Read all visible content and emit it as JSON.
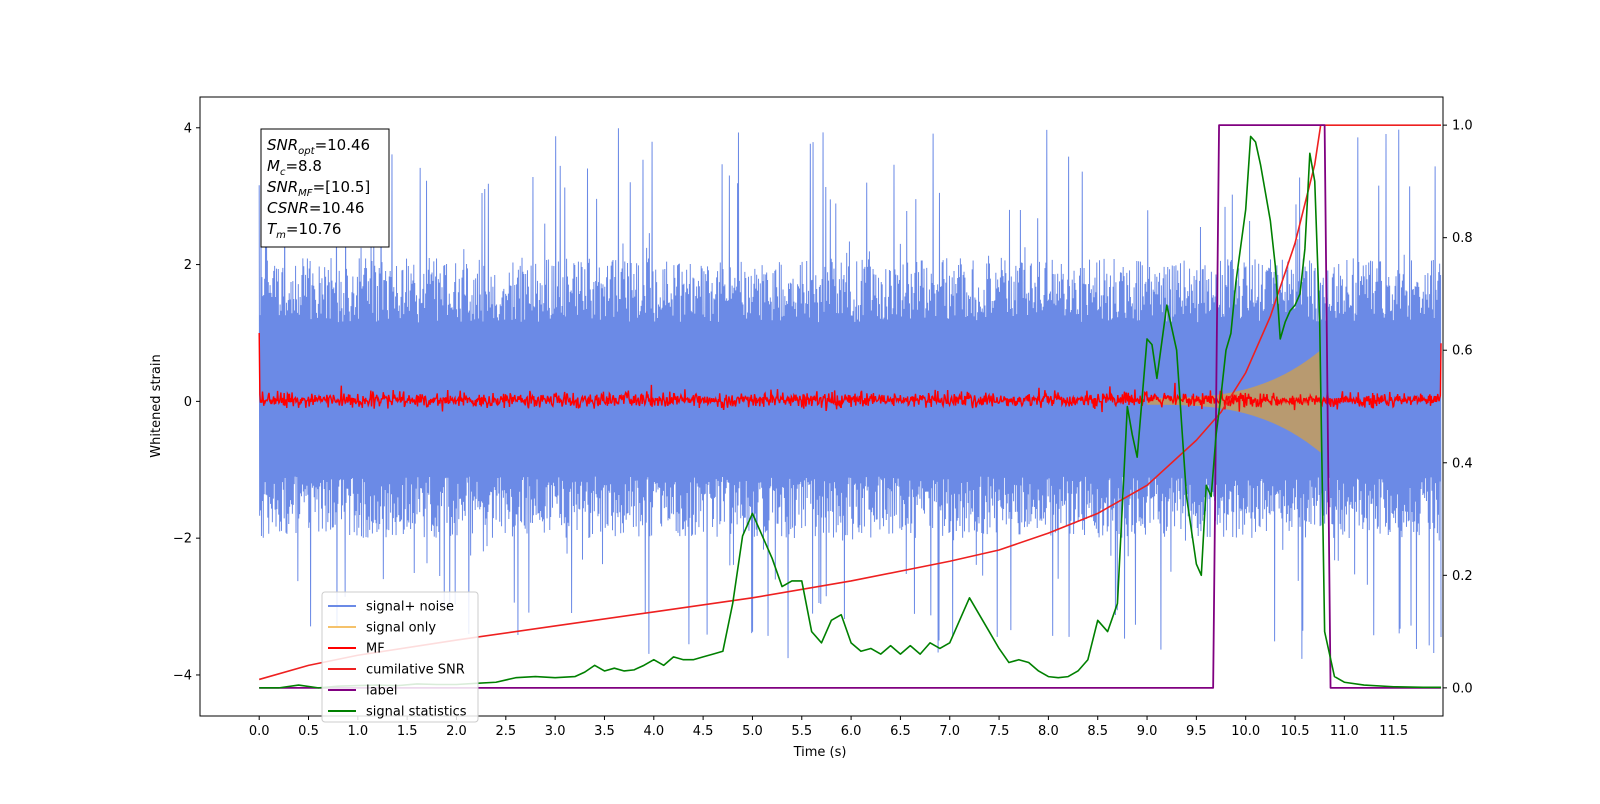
{
  "chart_data": {
    "type": "line",
    "xlabel": "Time (s)",
    "ylabel_left": "Whitened strain",
    "xlim": [
      -0.6,
      12.0
    ],
    "ylim_left": [
      -4.6,
      4.45
    ],
    "ylim_right": [
      -0.05,
      1.05
    ],
    "x_ticks": [
      0.0,
      0.5,
      1.0,
      1.5,
      2.0,
      2.5,
      3.0,
      3.5,
      4.0,
      4.5,
      5.0,
      5.5,
      6.0,
      6.5,
      7.0,
      7.5,
      8.0,
      8.5,
      9.0,
      9.5,
      10.0,
      10.5,
      11.0,
      11.5
    ],
    "x_tick_labels": [
      "0.0",
      "0.5",
      "1.0",
      "1.5",
      "2.0",
      "2.5",
      "3.0",
      "3.5",
      "4.0",
      "4.5",
      "5.0",
      "5.5",
      "6.0",
      "6.5",
      "7.0",
      "7.5",
      "8.0",
      "8.5",
      "9.0",
      "9.5",
      "10.0",
      "10.5",
      "11.0",
      "11.5"
    ],
    "y_left_ticks": [
      -4,
      -2,
      0,
      2,
      4
    ],
    "y_left_tick_labels": [
      "−4",
      "−2",
      "0",
      "2",
      "4"
    ],
    "y_right_ticks": [
      0.0,
      0.2,
      0.4,
      0.6,
      0.8,
      1.0
    ],
    "y_right_tick_labels": [
      "0.0",
      "0.2",
      "0.4",
      "0.6",
      "0.8",
      "1.0"
    ],
    "colors": {
      "signal_noise": "#6b8ae6",
      "signal_only": "#f5c26b",
      "mf": "#ff0000",
      "cumulative_snr": "#ee2020",
      "label": "#800080",
      "signal_statistics": "#008000",
      "overlap": "#b89a70"
    },
    "stats_box": [
      {
        "base": "SNR",
        "sub": "opt",
        "value": "=10.46"
      },
      {
        "base": "M",
        "sub": "c",
        "value": "=8.8"
      },
      {
        "base": "SNR",
        "sub": "MF",
        "value": "=[10.5]"
      },
      {
        "base": "CSNR",
        "sub": "",
        "value": "=10.46"
      },
      {
        "base": "T",
        "sub": "m",
        "value": "=10.76"
      }
    ],
    "legend_placement": "lower-left",
    "legend": [
      {
        "name": "signal+ noise",
        "color": "#6b8ae6"
      },
      {
        "name": "signal only",
        "color": "#f5c26b"
      },
      {
        "name": "MF",
        "color": "#ff0000"
      },
      {
        "name": "cumilative SNR",
        "color": "#ee2020"
      },
      {
        "name": "label",
        "color": "#800080"
      },
      {
        "name": "signal statistics",
        "color": "#008000"
      }
    ],
    "series": [
      {
        "name": "signal+ noise",
        "axis": "left",
        "x_range": [
          0.0,
          11.98
        ],
        "typical_envelope": [
          -2.0,
          2.1
        ],
        "spike_range": [
          -3.9,
          4.05
        ]
      },
      {
        "name": "signal only",
        "axis": "left",
        "x_range": [
          9.0,
          10.76
        ],
        "amplitude_start": 0.05,
        "amplitude_peak": 0.75,
        "peak_at": 10.76
      },
      {
        "name": "MF",
        "axis": "left",
        "x_range": [
          0.0,
          11.98
        ],
        "typical_envelope": [
          -0.15,
          0.2
        ],
        "start_value": 1.0,
        "end_value": 0.85
      },
      {
        "name": "cumilative SNR",
        "axis": "right",
        "x": [
          0.0,
          0.5,
          1.0,
          2.0,
          3.0,
          4.0,
          5.0,
          6.0,
          7.0,
          7.5,
          8.0,
          8.5,
          9.0,
          9.5,
          9.75,
          10.0,
          10.25,
          10.5,
          10.6,
          10.7,
          10.76,
          11.98
        ],
        "values": [
          0.015,
          0.04,
          0.058,
          0.085,
          0.11,
          0.135,
          0.16,
          0.19,
          0.225,
          0.245,
          0.275,
          0.31,
          0.36,
          0.44,
          0.49,
          0.56,
          0.66,
          0.79,
          0.86,
          0.93,
          1.0,
          1.0
        ]
      },
      {
        "name": "label",
        "axis": "right",
        "x": [
          0.0,
          9.67,
          9.73,
          10.8,
          10.86,
          11.98
        ],
        "values": [
          0.0,
          0.0,
          1.0,
          1.0,
          0.0,
          0.0
        ]
      },
      {
        "name": "signal statistics",
        "axis": "right",
        "x": [
          0.0,
          0.2,
          0.4,
          0.6,
          0.8,
          1.0,
          1.2,
          1.4,
          1.6,
          1.8,
          2.0,
          2.2,
          2.4,
          2.6,
          2.8,
          3.0,
          3.2,
          3.3,
          3.4,
          3.5,
          3.6,
          3.7,
          3.8,
          3.9,
          4.0,
          4.1,
          4.2,
          4.3,
          4.4,
          4.5,
          4.6,
          4.7,
          4.8,
          4.9,
          5.0,
          5.1,
          5.2,
          5.3,
          5.4,
          5.5,
          5.6,
          5.7,
          5.8,
          5.9,
          6.0,
          6.1,
          6.2,
          6.3,
          6.4,
          6.5,
          6.6,
          6.7,
          6.8,
          6.9,
          7.0,
          7.1,
          7.2,
          7.3,
          7.4,
          7.5,
          7.6,
          7.7,
          7.8,
          7.9,
          8.0,
          8.1,
          8.2,
          8.3,
          8.4,
          8.5,
          8.6,
          8.7,
          8.8,
          8.85,
          8.9,
          9.0,
          9.05,
          9.1,
          9.2,
          9.25,
          9.3,
          9.4,
          9.5,
          9.55,
          9.6,
          9.65,
          9.7,
          9.75,
          9.8,
          9.85,
          9.9,
          10.0,
          10.05,
          10.1,
          10.15,
          10.2,
          10.25,
          10.3,
          10.35,
          10.4,
          10.45,
          10.5,
          10.55,
          10.6,
          10.65,
          10.7,
          10.75,
          10.8,
          10.9,
          11.0,
          11.2,
          11.5,
          11.8,
          11.98
        ],
        "values": [
          0.0,
          0.0,
          0.005,
          0.0,
          0.003,
          0.004,
          0.005,
          0.004,
          0.007,
          0.006,
          0.006,
          0.008,
          0.01,
          0.018,
          0.02,
          0.018,
          0.02,
          0.028,
          0.04,
          0.03,
          0.035,
          0.03,
          0.032,
          0.04,
          0.05,
          0.04,
          0.055,
          0.05,
          0.05,
          0.055,
          0.06,
          0.065,
          0.15,
          0.27,
          0.31,
          0.27,
          0.23,
          0.18,
          0.19,
          0.19,
          0.1,
          0.08,
          0.12,
          0.13,
          0.08,
          0.065,
          0.07,
          0.06,
          0.075,
          0.06,
          0.075,
          0.06,
          0.08,
          0.07,
          0.08,
          0.12,
          0.16,
          0.13,
          0.1,
          0.07,
          0.045,
          0.05,
          0.045,
          0.03,
          0.02,
          0.018,
          0.02,
          0.03,
          0.05,
          0.12,
          0.1,
          0.15,
          0.5,
          0.45,
          0.41,
          0.62,
          0.61,
          0.55,
          0.68,
          0.64,
          0.6,
          0.34,
          0.22,
          0.2,
          0.36,
          0.34,
          0.45,
          0.52,
          0.6,
          0.63,
          0.72,
          0.85,
          0.98,
          0.97,
          0.93,
          0.88,
          0.83,
          0.75,
          0.62,
          0.65,
          0.67,
          0.68,
          0.7,
          0.78,
          0.95,
          0.9,
          0.65,
          0.1,
          0.02,
          0.01,
          0.005,
          0.002,
          0.001,
          0.001
        ]
      }
    ]
  }
}
